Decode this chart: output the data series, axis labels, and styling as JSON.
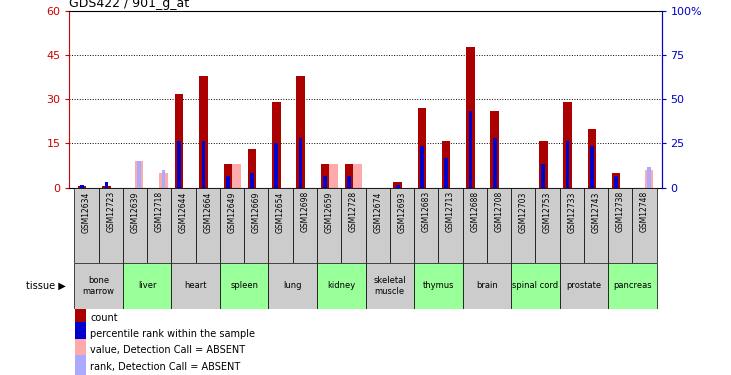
{
  "title": "GDS422 / 901_g_at",
  "samples": [
    "GSM12634",
    "GSM12723",
    "GSM12639",
    "GSM12718",
    "GSM12644",
    "GSM12664",
    "GSM12649",
    "GSM12669",
    "GSM12654",
    "GSM12698",
    "GSM12659",
    "GSM12728",
    "GSM12674",
    "GSM12693",
    "GSM12683",
    "GSM12713",
    "GSM12688",
    "GSM12708",
    "GSM12703",
    "GSM12753",
    "GSM12733",
    "GSM12743",
    "GSM12738",
    "GSM12748"
  ],
  "tissues": [
    {
      "name": "bone\nmarrow",
      "start": 0,
      "end": 2,
      "green": false
    },
    {
      "name": "liver",
      "start": 2,
      "end": 4,
      "green": true
    },
    {
      "name": "heart",
      "start": 4,
      "end": 6,
      "green": false
    },
    {
      "name": "spleen",
      "start": 6,
      "end": 8,
      "green": true
    },
    {
      "name": "lung",
      "start": 8,
      "end": 10,
      "green": false
    },
    {
      "name": "kidney",
      "start": 10,
      "end": 12,
      "green": true
    },
    {
      "name": "skeletal\nmuscle",
      "start": 12,
      "end": 14,
      "green": false
    },
    {
      "name": "thymus",
      "start": 14,
      "end": 16,
      "green": true
    },
    {
      "name": "brain",
      "start": 16,
      "end": 18,
      "green": false
    },
    {
      "name": "spinal cord",
      "start": 18,
      "end": 20,
      "green": true
    },
    {
      "name": "prostate",
      "start": 20,
      "end": 22,
      "green": false
    },
    {
      "name": "pancreas",
      "start": 22,
      "end": 24,
      "green": true
    }
  ],
  "count_values": [
    0.5,
    0.5,
    0,
    0,
    32,
    38,
    8,
    13,
    29,
    38,
    8,
    8,
    0,
    2,
    27,
    16,
    48,
    26,
    0,
    16,
    29,
    20,
    5,
    0
  ],
  "absent_value_values": [
    0,
    0,
    9,
    5,
    0,
    0,
    8,
    0,
    0,
    0,
    8,
    8,
    0,
    0,
    0,
    0,
    0,
    0,
    0,
    0,
    0,
    0,
    0,
    6
  ],
  "percentile_values": [
    1,
    2,
    0,
    0,
    16,
    16,
    4,
    5,
    15,
    17,
    4,
    4,
    0,
    1,
    14,
    10,
    26,
    17,
    0,
    8,
    16,
    14,
    4,
    0
  ],
  "absent_rank_values": [
    0,
    0,
    9,
    6,
    0,
    0,
    0,
    0,
    0,
    0,
    0,
    0,
    0,
    0,
    0,
    0,
    0,
    0,
    0,
    0,
    0,
    0,
    0,
    7
  ],
  "left_ylim": [
    0,
    60
  ],
  "right_ylim": [
    0,
    100
  ],
  "left_yticks": [
    0,
    15,
    30,
    45,
    60
  ],
  "right_yticks": [
    0,
    25,
    50,
    75,
    100
  ],
  "right_yticklabels": [
    "0",
    "25",
    "50",
    "75",
    "100%"
  ],
  "dotted_lines": [
    15,
    30,
    45
  ],
  "bar_width": 0.35,
  "colors": {
    "count": "#aa0000",
    "percentile": "#0000cc",
    "absent_value": "#ffaaaa",
    "absent_rank": "#aaaaff",
    "tissue_green": "#99ff99",
    "tissue_grey": "#cccccc",
    "label_bg": "#cccccc",
    "axis_left": "#cc0000",
    "axis_right": "#0000cc"
  },
  "legend_items": [
    {
      "color": "#aa0000",
      "label": "count"
    },
    {
      "color": "#0000cc",
      "label": "percentile rank within the sample"
    },
    {
      "color": "#ffaaaa",
      "label": "value, Detection Call = ABSENT"
    },
    {
      "color": "#aaaaff",
      "label": "rank, Detection Call = ABSENT"
    }
  ]
}
